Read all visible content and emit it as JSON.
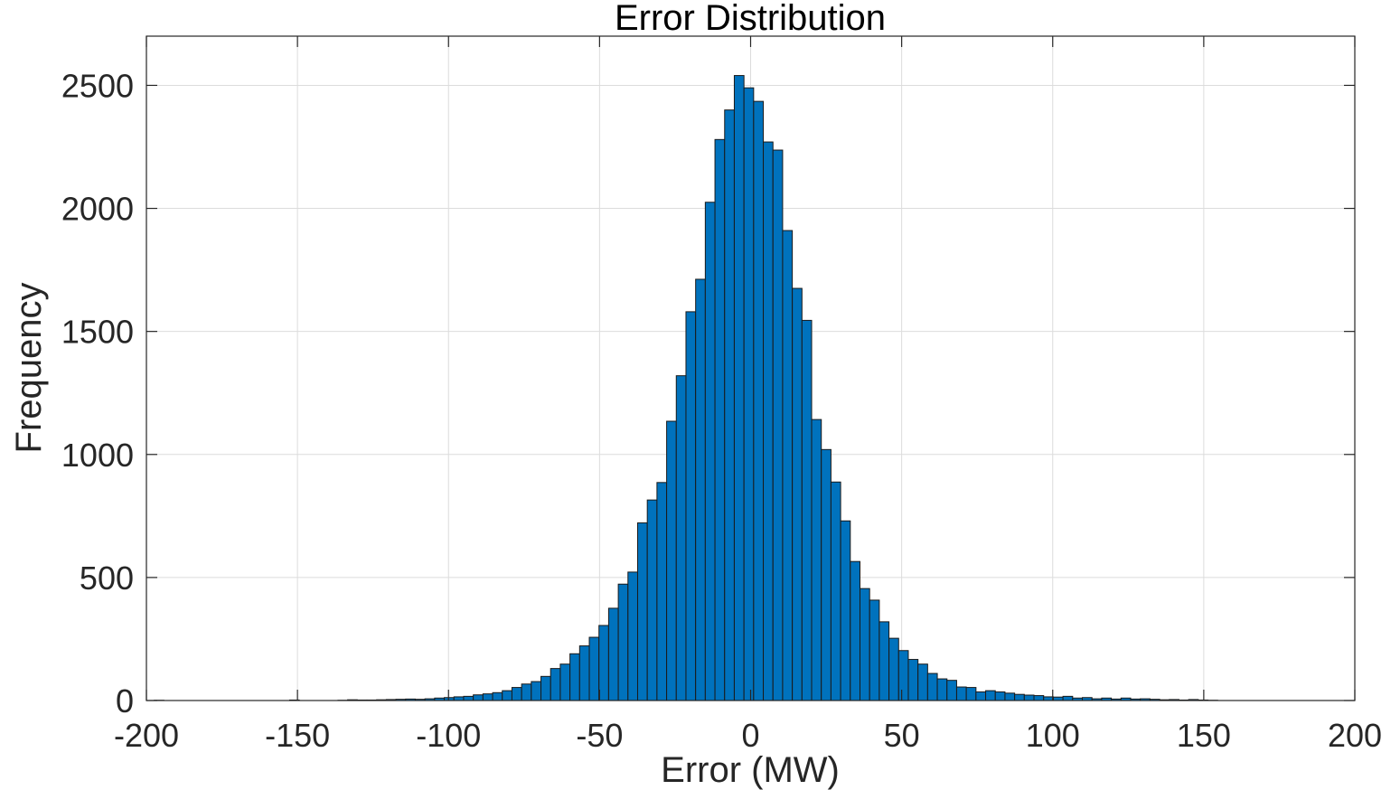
{
  "chart_data": {
    "type": "bar",
    "title": "Error Distribution",
    "xlabel": "Error (MW)",
    "ylabel": "Frequency",
    "xlim": [
      -200,
      200
    ],
    "ylim": [
      0,
      2700
    ],
    "grid": true,
    "bar_color": "#0072BD",
    "bar_edge_color": "#1a1a1a",
    "xticks": [
      -200,
      -150,
      -100,
      -50,
      0,
      50,
      100,
      150,
      200
    ],
    "yticks": [
      0,
      500,
      1000,
      1500,
      2000,
      2500
    ],
    "bin_edges_start": -197.4,
    "bin_width": 3.2,
    "values": [
      1,
      0,
      0,
      0,
      0,
      0,
      0,
      0,
      0,
      0,
      0,
      0,
      0,
      0,
      2,
      0,
      0,
      0,
      0,
      1,
      3,
      2,
      2,
      3,
      4,
      5,
      6,
      5,
      7,
      10,
      12,
      15,
      17,
      23,
      27,
      32,
      40,
      53,
      67,
      77,
      98,
      130,
      148,
      190,
      222,
      257,
      305,
      375,
      473,
      522,
      722,
      815,
      886,
      1135,
      1320,
      1580,
      1712,
      2025,
      2280,
      2400,
      2540,
      2490,
      2435,
      2270,
      2237,
      1910,
      1675,
      1545,
      1142,
      1020,
      888,
      730,
      565,
      455,
      408,
      320,
      253,
      203,
      167,
      148,
      110,
      88,
      82,
      55,
      53,
      35,
      40,
      35,
      30,
      25,
      22,
      20,
      15,
      14,
      17,
      10,
      12,
      7,
      10,
      6,
      10,
      6,
      7,
      5,
      3,
      4,
      2,
      4,
      2,
      1
    ]
  }
}
